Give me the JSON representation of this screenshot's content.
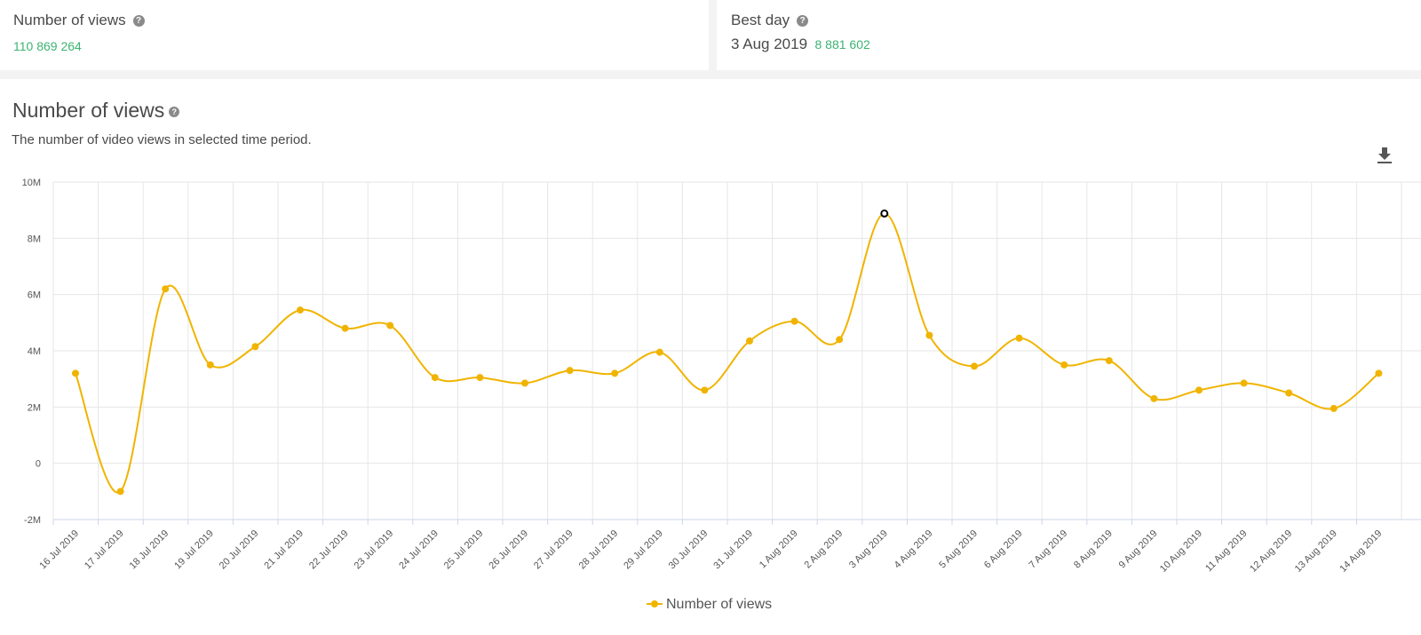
{
  "stats": {
    "views_title": "Number of views",
    "views_total": "110 869 264",
    "best_title": "Best day",
    "best_date": "3 Aug 2019",
    "best_value": "8 881 602",
    "help_glyph": "?"
  },
  "chart_section": {
    "title": "Number of views",
    "subtitle": "The number of video views in selected time period."
  },
  "colors": {
    "series": "#f0b400",
    "green": "#3cb371",
    "grid": "#e6e6e6"
  },
  "icons": [
    "help-icon",
    "download-icon"
  ],
  "chart_data": {
    "type": "line",
    "title": "Number of views",
    "xlabel": "",
    "ylabel": "",
    "ylim": [
      -2000000,
      10000000
    ],
    "y_ticks": [
      -2000000,
      0,
      2000000,
      4000000,
      6000000,
      8000000,
      10000000
    ],
    "y_tick_labels": [
      "-2M",
      "0",
      "2M",
      "4M",
      "6M",
      "8M",
      "10M"
    ],
    "grid": true,
    "smooth": true,
    "highlighted_point": "3 Aug 2019",
    "legend_position": "bottom-center",
    "categories": [
      "16 Jul 2019",
      "17 Jul 2019",
      "18 Jul 2019",
      "19 Jul 2019",
      "20 Jul 2019",
      "21 Jul 2019",
      "22 Jul 2019",
      "23 Jul 2019",
      "24 Jul 2019",
      "25 Jul 2019",
      "26 Jul 2019",
      "27 Jul 2019",
      "28 Jul 2019",
      "29 Jul 2019",
      "30 Jul 2019",
      "31 Jul 2019",
      "1 Aug 2019",
      "2 Aug 2019",
      "3 Aug 2019",
      "4 Aug 2019",
      "5 Aug 2019",
      "6 Aug 2019",
      "7 Aug 2019",
      "8 Aug 2019",
      "9 Aug 2019",
      "10 Aug 2019",
      "11 Aug 2019",
      "12 Aug 2019",
      "13 Aug 2019",
      "14 Aug 2019"
    ],
    "series": [
      {
        "name": "Number of views",
        "values": [
          3200000,
          -1000000,
          6200000,
          3500000,
          4150000,
          5450000,
          4800000,
          4900000,
          3050000,
          3050000,
          2850000,
          3300000,
          3200000,
          3950000,
          2600000,
          4350000,
          5050000,
          4400000,
          8881602,
          4550000,
          3450000,
          4450000,
          3500000,
          3650000,
          2300000,
          2600000,
          2850000,
          2500000,
          1950000,
          3200000
        ]
      }
    ]
  }
}
